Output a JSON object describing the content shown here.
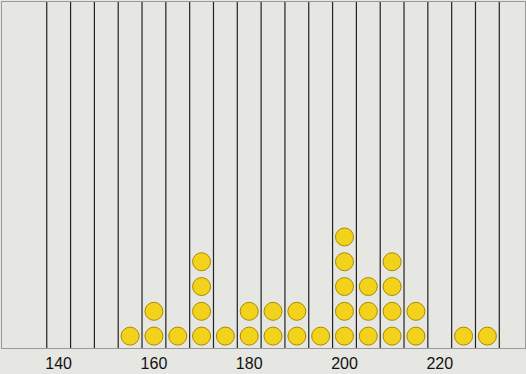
{
  "chart_data": {
    "type": "histogram",
    "bins": [
      137.5,
      142.5,
      147.5,
      152.5,
      157.5,
      162.5,
      167.5,
      172.5,
      177.5,
      182.5,
      187.5,
      192.5,
      197.5,
      202.5,
      207.5,
      212.5,
      217.5,
      222.5,
      227.5,
      232.5
    ],
    "values": [
      0,
      0,
      0,
      1,
      2,
      1,
      4,
      1,
      2,
      2,
      2,
      1,
      5,
      3,
      4,
      2,
      0,
      1,
      1
    ],
    "color": "#f2d21b",
    "marker": "circle",
    "xlim": [
      128,
      238
    ],
    "xticks": [
      140,
      160,
      180,
      200,
      220
    ],
    "ylim": [
      0,
      14
    ],
    "tick_labels": "x"
  }
}
